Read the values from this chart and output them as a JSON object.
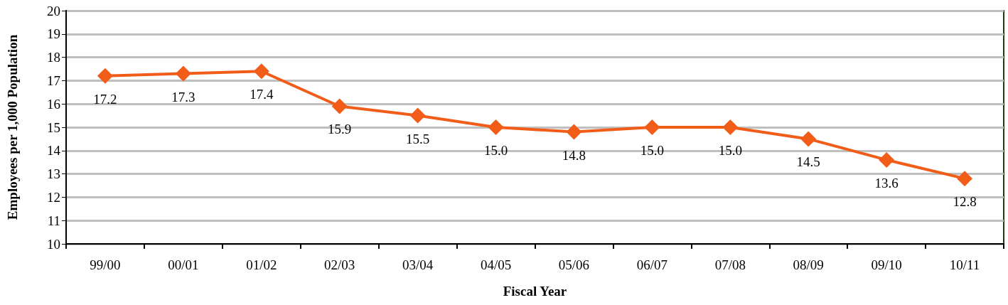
{
  "chart_data": {
    "type": "line",
    "xlabel": "Fiscal Year",
    "ylabel": "Employees per 1,000 Population",
    "categories": [
      "99/00",
      "00/01",
      "01/02",
      "02/03",
      "03/04",
      "04/05",
      "05/06",
      "06/07",
      "07/08",
      "08/09",
      "09/10",
      "10/11"
    ],
    "series": [
      {
        "color": "#f25c19",
        "values": [
          17.2,
          17.3,
          17.4,
          15.9,
          15.5,
          15.0,
          14.8,
          15.0,
          15.0,
          14.5,
          13.6,
          12.8
        ],
        "value_labels": [
          "17.2",
          "17.3",
          "17.4",
          "15.9",
          "15.5",
          "15.0",
          "14.8",
          "15.0",
          "15.0",
          "14.5",
          "13.6",
          "12.8"
        ]
      }
    ],
    "ylim": [
      10,
      20
    ],
    "yticks": [
      10,
      11,
      12,
      13,
      14,
      15,
      16,
      17,
      18,
      19,
      20
    ],
    "grid": "y",
    "marker": "diamond",
    "line_style": "solid"
  }
}
